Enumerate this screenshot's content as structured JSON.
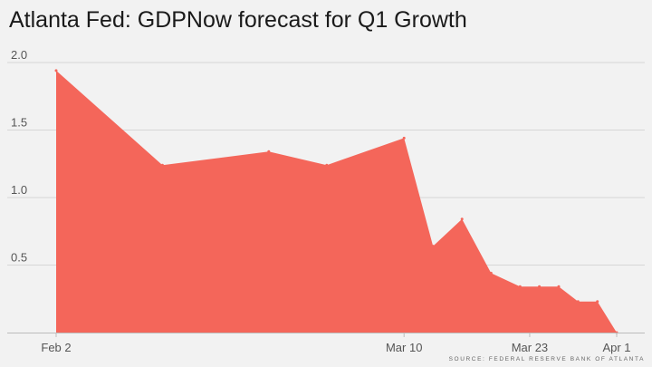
{
  "chart_data": {
    "type": "area",
    "title": "Atlanta Fed: GDPNow forecast for Q1 Growth",
    "xlabel": "",
    "ylabel": "",
    "ylim": [
      0,
      2.0
    ],
    "y_ticks": [
      {
        "value": 0.5,
        "label": "0.5"
      },
      {
        "value": 1.0,
        "label": "1.0"
      },
      {
        "value": 1.5,
        "label": "1.5"
      },
      {
        "value": 2.0,
        "label": "2.0"
      }
    ],
    "x_ticks": [
      {
        "date": "Feb 2",
        "label": "Feb 2"
      },
      {
        "date": "Mar 10",
        "label": "Mar 10"
      },
      {
        "date": "Mar 23",
        "label": "Mar 23"
      },
      {
        "date": "Apr 1",
        "label": "Apr 1"
      }
    ],
    "points": [
      {
        "date": "Feb 2",
        "value": 1.94
      },
      {
        "date": "Feb 13",
        "value": 1.24
      },
      {
        "date": "Feb 24",
        "value": 1.34
      },
      {
        "date": "Mar 2",
        "value": 1.24
      },
      {
        "date": "Mar 10",
        "value": 1.44
      },
      {
        "date": "Mar 13",
        "value": 0.64
      },
      {
        "date": "Mar 16",
        "value": 0.84
      },
      {
        "date": "Mar 19",
        "value": 0.44
      },
      {
        "date": "Mar 22",
        "value": 0.34
      },
      {
        "date": "Mar 24",
        "value": 0.34
      },
      {
        "date": "Mar 26",
        "value": 0.34
      },
      {
        "date": "Mar 28",
        "value": 0.23
      },
      {
        "date": "Mar 30",
        "value": 0.23
      },
      {
        "date": "Apr 1",
        "value": 0.0
      }
    ],
    "grid": true,
    "legend": "none",
    "fill_color": "#f4665a",
    "grid_color": "#d6d6d6"
  },
  "source": "SOURCE: FEDERAL RESERVE BANK OF ATLANTA"
}
